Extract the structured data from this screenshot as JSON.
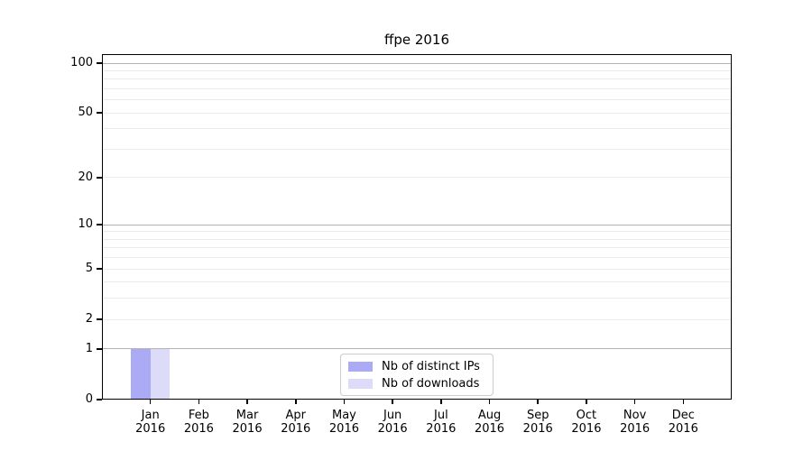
{
  "title": "ffpe 2016",
  "chart_data": {
    "type": "bar",
    "title": "ffpe 2016",
    "month_labels": [
      "Jan",
      "Feb",
      "Mar",
      "Apr",
      "May",
      "Jun",
      "Jul",
      "Aug",
      "Sep",
      "Oct",
      "Nov",
      "Dec"
    ],
    "year_label": "2016",
    "categories": [
      "Jan 2016",
      "Feb 2016",
      "Mar 2016",
      "Apr 2016",
      "May 2016",
      "Jun 2016",
      "Jul 2016",
      "Aug 2016",
      "Sep 2016",
      "Oct 2016",
      "Nov 2016",
      "Dec 2016"
    ],
    "series": [
      {
        "name": "Nb of distinct IPs",
        "color": "#aaaaf5",
        "values": [
          1,
          0,
          0,
          0,
          0,
          0,
          0,
          0,
          0,
          0,
          0,
          0
        ]
      },
      {
        "name": "Nb of downloads",
        "color": "#dcdcf8",
        "values": [
          1,
          0,
          0,
          0,
          0,
          0,
          0,
          0,
          0,
          0,
          0,
          0
        ]
      }
    ],
    "y_axis": {
      "scale": "log1p",
      "tick_values": [
        0,
        1,
        2,
        5,
        10,
        20,
        50,
        100
      ],
      "major_grid_values": [
        1,
        10,
        100
      ],
      "minor_grid_values": [
        2,
        3,
        4,
        5,
        6,
        7,
        8,
        9,
        20,
        30,
        40,
        50,
        60,
        70,
        80,
        90
      ]
    },
    "legend_position": "lower center inside",
    "grid": true
  },
  "colors": {
    "background": "#ffffff",
    "spine": "#000000",
    "major_grid": "#b3b3b3",
    "minor_grid": "#ebebeb",
    "text": "#000000",
    "legend_border": "#cccccc"
  }
}
